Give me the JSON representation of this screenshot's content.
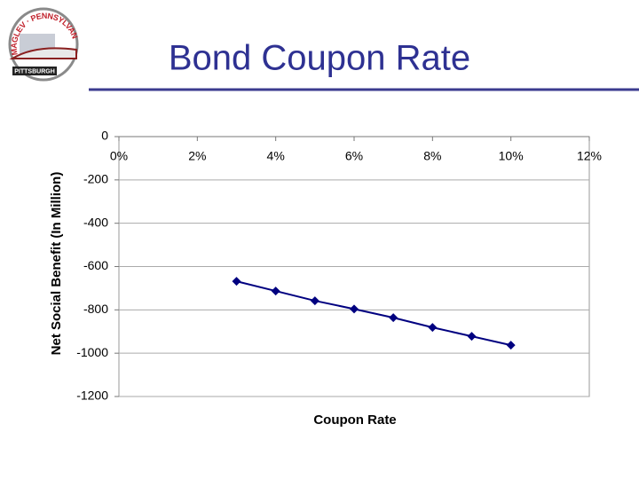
{
  "logo": {
    "top": "MAGLEV · PENNSYLVANIA",
    "bottom": "PITTSBURGH"
  },
  "chart_data": {
    "type": "line",
    "title": "Bond Coupon Rate",
    "x_label": "Coupon Rate",
    "y_label": "Net Social Benefit (In Million)",
    "x": [
      3,
      4,
      5,
      6,
      7,
      8,
      9,
      10
    ],
    "series": [
      {
        "name": "Net Social Benefit",
        "color": "#000080",
        "values": [
          -668,
          -713,
          -758,
          -796,
          -836,
          -881,
          -922,
          -963
        ]
      }
    ],
    "xlim": [
      0,
      12
    ],
    "xticks": [
      {
        "value": 0,
        "label": "0%"
      },
      {
        "value": 2,
        "label": "2%"
      },
      {
        "value": 4,
        "label": "4%"
      },
      {
        "value": 6,
        "label": "6%"
      },
      {
        "value": 8,
        "label": "8%"
      },
      {
        "value": 10,
        "label": "10%"
      },
      {
        "value": 12,
        "label": "12%"
      }
    ],
    "ylim": [
      -1200,
      0
    ],
    "yticks": [
      0,
      -200,
      -400,
      -600,
      -800,
      -1000,
      -1200
    ],
    "grid": true
  }
}
